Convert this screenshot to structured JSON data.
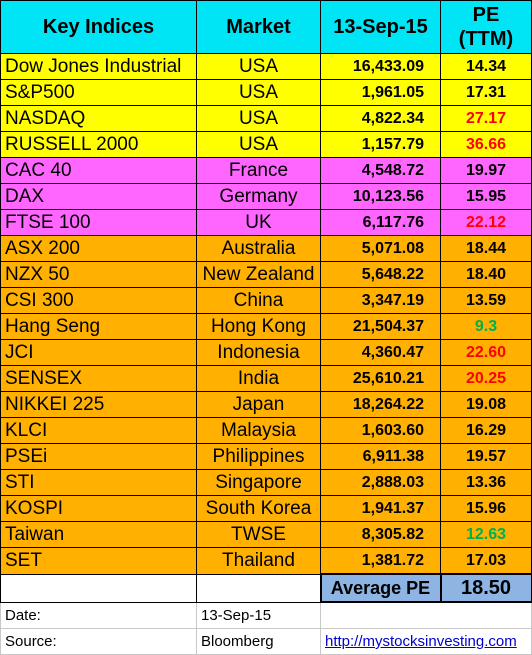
{
  "header": {
    "index": "Key Indices",
    "market": "Market",
    "date": "13-Sep-15",
    "pe_line1": "PE",
    "pe_line2": "(TTM)"
  },
  "colors": {
    "us": "#ffff00",
    "europe": "#ff66ff",
    "asia": "#ffb000",
    "header": "#00e5f5",
    "avg": "#8eb4e3",
    "pe_red": "#ff0000",
    "pe_green": "#00b050",
    "pe_black": "#000000"
  },
  "rows": [
    {
      "index": "Dow Jones Industrial",
      "market": "USA",
      "value": "16,433.09",
      "pe": "14.34",
      "region": "us",
      "pe_color": "pe_black"
    },
    {
      "index": "S&P500",
      "market": "USA",
      "value": "1,961.05",
      "pe": "17.31",
      "region": "us",
      "pe_color": "pe_black"
    },
    {
      "index": "NASDAQ",
      "market": "USA",
      "value": "4,822.34",
      "pe": "27.17",
      "region": "us",
      "pe_color": "pe_red"
    },
    {
      "index": "RUSSELL 2000",
      "market": "USA",
      "value": "1,157.79",
      "pe": "36.66",
      "region": "us",
      "pe_color": "pe_red"
    },
    {
      "index": "CAC 40",
      "market": "France",
      "value": "4,548.72",
      "pe": "19.97",
      "region": "europe",
      "pe_color": "pe_black"
    },
    {
      "index": "DAX",
      "market": "Germany",
      "value": "10,123.56",
      "pe": "15.95",
      "region": "europe",
      "pe_color": "pe_black"
    },
    {
      "index": "FTSE 100",
      "market": "UK",
      "value": "6,117.76",
      "pe": "22.12",
      "region": "europe",
      "pe_color": "pe_red"
    },
    {
      "index": "ASX 200",
      "market": "Australia",
      "value": "5,071.08",
      "pe": "18.44",
      "region": "asia",
      "pe_color": "pe_black"
    },
    {
      "index": "NZX 50",
      "market": "New Zealand",
      "value": "5,648.22",
      "pe": "18.40",
      "region": "asia",
      "pe_color": "pe_black"
    },
    {
      "index": "CSI 300",
      "market": "China",
      "value": "3,347.19",
      "pe": "13.59",
      "region": "asia",
      "pe_color": "pe_black"
    },
    {
      "index": "Hang Seng",
      "market": "Hong Kong",
      "value": "21,504.37",
      "pe": "9.3",
      "region": "asia",
      "pe_color": "pe_green"
    },
    {
      "index": "JCI",
      "market": "Indonesia",
      "value": "4,360.47",
      "pe": "22.60",
      "region": "asia",
      "pe_color": "pe_red"
    },
    {
      "index": "SENSEX",
      "market": "India",
      "value": "25,610.21",
      "pe": "20.25",
      "region": "asia",
      "pe_color": "pe_red"
    },
    {
      "index": "NIKKEI 225",
      "market": "Japan",
      "value": "18,264.22",
      "pe": "19.08",
      "region": "asia",
      "pe_color": "pe_black"
    },
    {
      "index": "KLCI",
      "market": "Malaysia",
      "value": "1,603.60",
      "pe": "16.29",
      "region": "asia",
      "pe_color": "pe_black"
    },
    {
      "index": "PSEi",
      "market": "Philippines",
      "value": "6,911.38",
      "pe": "19.57",
      "region": "asia",
      "pe_color": "pe_black"
    },
    {
      "index": "STI",
      "market": "Singapore",
      "value": "2,888.03",
      "pe": "13.36",
      "region": "asia",
      "pe_color": "pe_black"
    },
    {
      "index": "KOSPI",
      "market": "South Korea",
      "value": "1,941.37",
      "pe": "15.96",
      "region": "asia",
      "pe_color": "pe_black"
    },
    {
      "index": "Taiwan",
      "market": "TWSE",
      "value": "8,305.82",
      "pe": "12.63",
      "region": "asia",
      "pe_color": "pe_green"
    },
    {
      "index": "SET",
      "market": "Thailand",
      "value": "1,381.72",
      "pe": "17.03",
      "region": "asia",
      "pe_color": "pe_black"
    }
  ],
  "average": {
    "label": "Average PE",
    "value": "18.50"
  },
  "info": {
    "date_label": "Date:",
    "date_value": "13-Sep-15",
    "source_label": "Source:",
    "source_value": "Bloomberg",
    "link": "http://mystocksinvesting.com"
  }
}
